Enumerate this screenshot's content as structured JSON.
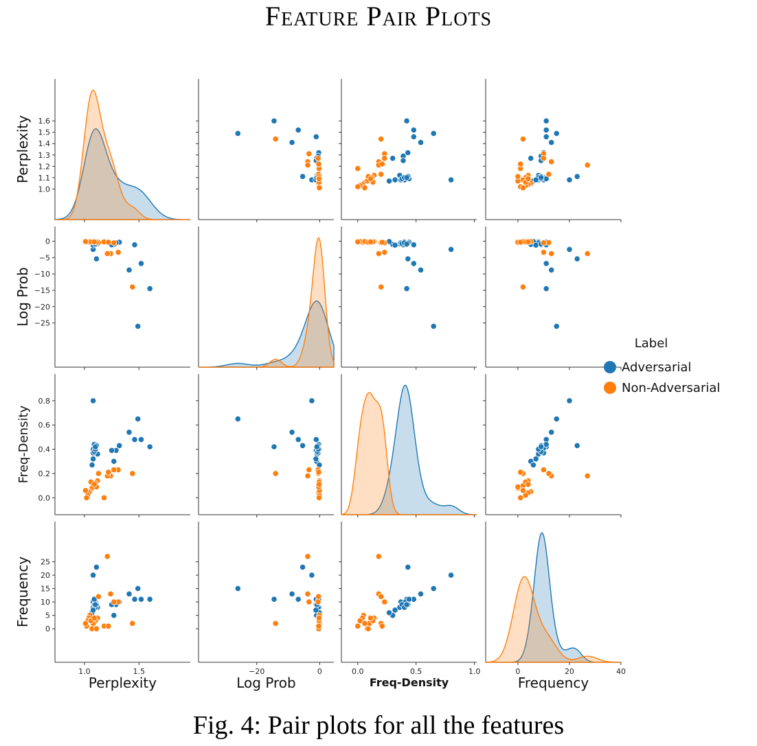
{
  "title": "Feature Pair Plots",
  "caption": "Fig. 4: Pair plots for all the features",
  "legend": {
    "title": "Label",
    "entries": [
      {
        "label": "Adversarial",
        "color": "#1f77b4"
      },
      {
        "label": "Non-Adversarial",
        "color": "#ff7f0e"
      }
    ]
  },
  "chart_data": {
    "type": "scatter",
    "variables": [
      "Perplexity",
      "Log Prob",
      "Freq-Density",
      "Frequency"
    ],
    "axis_ranges": {
      "Perplexity": [
        0.73,
        1.97
      ],
      "Log Prob": [
        -38.5,
        4.5
      ],
      "Freq-Density": [
        -0.14,
        1.02
      ],
      "Frequency": [
        -12.5,
        40
      ]
    },
    "ticks": {
      "Perplexity": {
        "row": [
          1.0,
          1.1,
          1.2,
          1.3,
          1.4,
          1.5,
          1.6
        ],
        "col": [
          1.0,
          1.5
        ]
      },
      "Log Prob": {
        "row": [
          0,
          -5,
          -10,
          -15,
          -20,
          -25
        ],
        "col": [
          -20,
          0
        ]
      },
      "Freq-Density": {
        "row": [
          0.0,
          0.2,
          0.4,
          0.6,
          0.8
        ],
        "col": [
          0.0,
          0.5,
          1.0
        ]
      },
      "Frequency": {
        "row": [
          0,
          5,
          10,
          15,
          20,
          25
        ],
        "col": [
          0,
          20,
          40
        ]
      }
    },
    "tick_labels": {
      "Perplexity": {
        "row": [
          "1.0",
          "1.1",
          "1.2",
          "1.3",
          "1.4",
          "1.5",
          "1.6"
        ],
        "col": [
          "1.0",
          "1.5"
        ]
      },
      "Log Prob": {
        "row": [
          "0",
          "−5",
          "−10",
          "−15",
          "−20",
          "−25"
        ],
        "col": [
          "−20",
          "0"
        ]
      },
      "Freq-Density": {
        "row": [
          "0.0",
          "0.2",
          "0.4",
          "0.6",
          "0.8"
        ],
        "col": [
          "0.0",
          "0.5",
          "1.0"
        ]
      },
      "Frequency": {
        "row": [
          "0",
          "5",
          "10",
          "15",
          "20",
          "25"
        ],
        "col": [
          "0",
          "20",
          "40"
        ]
      }
    },
    "series": [
      {
        "name": "Adversarial",
        "color": "#1f77b4",
        "points": [
          [
            1.6,
            -14.5,
            0.42,
            11
          ],
          [
            1.49,
            -26.0,
            0.65,
            15
          ],
          [
            1.52,
            -6.8,
            0.48,
            11
          ],
          [
            1.41,
            -8.8,
            0.54,
            13
          ],
          [
            1.46,
            -1.1,
            0.48,
            11
          ],
          [
            1.32,
            -0.3,
            0.43,
            10
          ],
          [
            1.29,
            -0.5,
            0.39,
            9
          ],
          [
            1.27,
            -1.0,
            0.3,
            5
          ],
          [
            1.25,
            -1.1,
            0.39,
            9
          ],
          [
            1.12,
            -0.8,
            0.36,
            8
          ],
          [
            1.08,
            -0.5,
            0.37,
            10
          ],
          [
            1.1,
            -0.4,
            0.41,
            10
          ],
          [
            1.09,
            -0.3,
            0.44,
            11
          ],
          [
            1.11,
            -0.6,
            0.43,
            9
          ],
          [
            1.08,
            -0.2,
            0.4,
            8
          ],
          [
            1.09,
            -0.7,
            0.38,
            9
          ],
          [
            1.1,
            -0.5,
            0.4,
            8
          ],
          [
            1.08,
            -2.5,
            0.8,
            20
          ],
          [
            1.11,
            -5.4,
            0.43,
            23
          ],
          [
            1.07,
            -0.1,
            0.27,
            6
          ],
          [
            1.08,
            -1.2,
            0.32,
            7
          ],
          [
            1.1,
            -0.9,
            0.42,
            9
          ]
        ]
      },
      {
        "name": "Non-Adversarial",
        "color": "#ff7f0e",
        "points": [
          [
            1.44,
            -14.0,
            0.2,
            2
          ],
          [
            1.31,
            -3.4,
            0.23,
            10
          ],
          [
            1.24,
            -3.8,
            0.18,
            13
          ],
          [
            1.21,
            -3.8,
            0.18,
            27
          ],
          [
            1.18,
            -0.2,
            0.0,
            1
          ],
          [
            1.12,
            -0.1,
            0.14,
            4
          ],
          [
            1.1,
            -0.3,
            0.12,
            3
          ],
          [
            1.08,
            -0.1,
            0.1,
            2
          ],
          [
            1.07,
            -0.2,
            0.08,
            0
          ],
          [
            1.05,
            -0.1,
            0.05,
            5
          ],
          [
            1.04,
            -0.3,
            0.04,
            4
          ],
          [
            1.03,
            -0.1,
            0.02,
            3
          ],
          [
            1.02,
            -0.2,
            0.0,
            1
          ],
          [
            1.01,
            -0.1,
            0.06,
            2
          ],
          [
            1.13,
            -0.4,
            0.2,
            12
          ],
          [
            1.06,
            -0.2,
            0.13,
            3
          ],
          [
            1.11,
            -0.3,
            0.09,
            0
          ],
          [
            1.09,
            -0.2,
            0.11,
            4
          ],
          [
            1.27,
            -0.5,
            0.23,
            10
          ],
          [
            1.22,
            -0.3,
            0.21,
            1
          ]
        ]
      }
    ],
    "diagonal": "kde",
    "grid": false,
    "legend_position": "right"
  }
}
